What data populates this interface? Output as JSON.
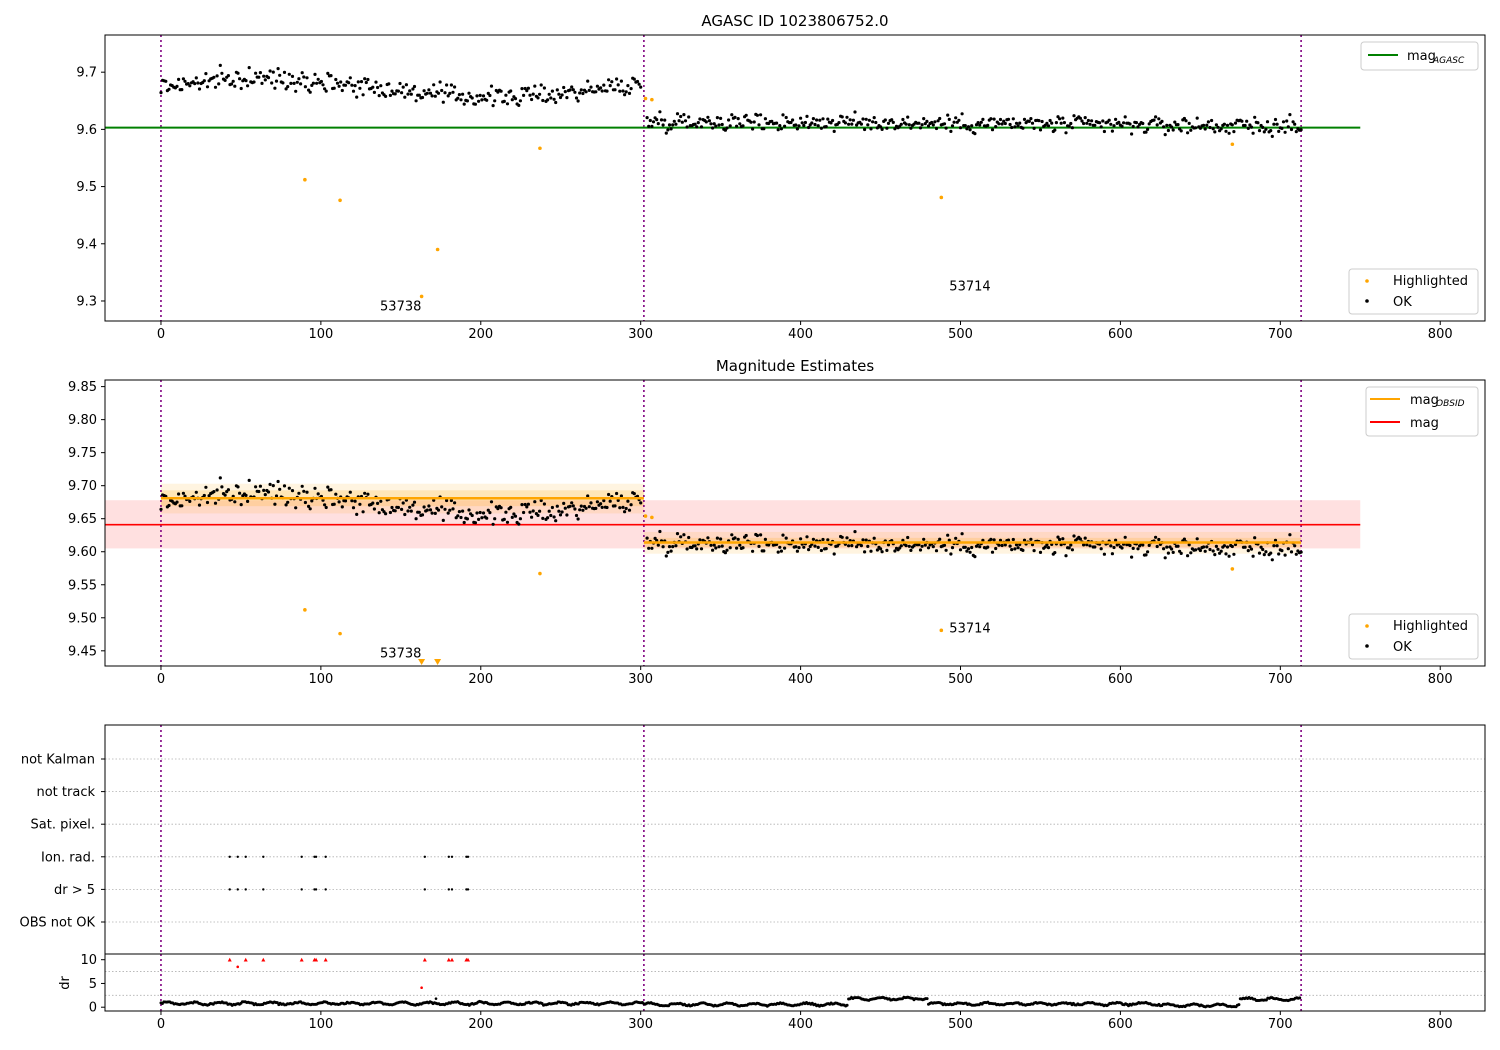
{
  "chart_data": [
    {
      "type": "scatter",
      "title": "AGASC ID 1023806752.0",
      "xlim": [
        -35,
        828
      ],
      "ylim": [
        9.265,
        9.765
      ],
      "xticks": [
        0,
        100,
        200,
        300,
        400,
        500,
        600,
        700,
        800
      ],
      "yticks": [
        9.3,
        9.4,
        9.5,
        9.6,
        9.7
      ],
      "ytick_labels": [
        "9.3",
        "9.4",
        "9.5",
        "9.6",
        "9.7"
      ],
      "vlines": [
        0,
        302,
        713
      ],
      "mag_agasc": {
        "value": 9.603,
        "x": [
          -35,
          750
        ]
      },
      "highlighted": [
        [
          90,
          9.512
        ],
        [
          112,
          9.476
        ],
        [
          163,
          9.308
        ],
        [
          173,
          9.39
        ],
        [
          237,
          9.567
        ],
        [
          303,
          9.654
        ],
        [
          307,
          9.652
        ],
        [
          488,
          9.481
        ],
        [
          670,
          9.574
        ]
      ],
      "ok_segments": [
        {
          "x0": 0,
          "x1": 300,
          "n": 300,
          "start": 9.675,
          "end": 9.67,
          "bump": 0.015,
          "noise": 0.012
        },
        {
          "x0": 304,
          "x1": 713,
          "n": 410,
          "start": 9.615,
          "end": 9.605,
          "bump": 0.0,
          "noise": 0.011
        }
      ],
      "annotations": [
        {
          "text": "53738",
          "x": 137,
          "y": 9.283
        },
        {
          "text": "53714",
          "x": 493,
          "y": 9.318
        }
      ],
      "legends": [
        {
          "placement": "upper-right",
          "entries": [
            {
              "label": "mag",
              "sub": "AGASC",
              "marker": "line",
              "color": "#008000"
            }
          ]
        },
        {
          "placement": "lower-right",
          "entries": [
            {
              "label": "Highlighted",
              "marker": "dot",
              "color": "#ffa500"
            },
            {
              "label": "OK",
              "marker": "dot",
              "color": "#000000"
            }
          ]
        }
      ]
    },
    {
      "type": "scatter",
      "title": "Magnitude Estimates",
      "xlim": [
        -35,
        828
      ],
      "ylim": [
        9.427,
        9.86
      ],
      "xticks": [
        0,
        100,
        200,
        300,
        400,
        500,
        600,
        700,
        800
      ],
      "yticks": [
        9.45,
        9.5,
        9.55,
        9.6,
        9.65,
        9.7,
        9.75,
        9.8,
        9.85
      ],
      "ytick_labels": [
        "9.45",
        "9.50",
        "9.55",
        "9.60",
        "9.65",
        "9.70",
        "9.75",
        "9.80",
        "9.85"
      ],
      "vlines": [
        0,
        302,
        713
      ],
      "mag": {
        "value": 9.641,
        "low": 9.605,
        "high": 9.678,
        "x": [
          -35,
          750
        ]
      },
      "mag_obsid": [
        {
          "x0": 0,
          "x1": 302,
          "value": 9.681,
          "low": 9.669,
          "high": 9.693,
          "low2": 9.658,
          "high2": 9.703
        },
        {
          "x0": 302,
          "x1": 713,
          "value": 9.614,
          "low": 9.607,
          "high": 9.621,
          "low2": 9.597,
          "high2": 9.63
        }
      ],
      "highlighted": [
        [
          90,
          9.512
        ],
        [
          112,
          9.476
        ],
        [
          237,
          9.567
        ],
        [
          303,
          9.654
        ],
        [
          307,
          9.652
        ],
        [
          488,
          9.481
        ],
        [
          670,
          9.574
        ]
      ],
      "below_range": [
        163,
        173
      ],
      "ok_segments": [
        {
          "x0": 0,
          "x1": 300,
          "n": 300,
          "start": 9.675,
          "end": 9.67,
          "bump": 0.015,
          "noise": 0.012
        },
        {
          "x0": 304,
          "x1": 713,
          "n": 410,
          "start": 9.615,
          "end": 9.605,
          "bump": 0.0,
          "noise": 0.011
        }
      ],
      "annotations": [
        {
          "text": "53738",
          "x": 137,
          "y": 9.44
        },
        {
          "text": "53714",
          "x": 493,
          "y": 9.478
        }
      ],
      "legends": [
        {
          "placement": "upper-right",
          "entries": [
            {
              "label": "mag",
              "sub": "OBSID",
              "marker": "line",
              "color": "#ffa500"
            },
            {
              "label": "mag",
              "marker": "line",
              "color": "#ff0000"
            }
          ]
        },
        {
          "placement": "lower-right",
          "entries": [
            {
              "label": "Highlighted",
              "marker": "dot",
              "color": "#ffa500"
            },
            {
              "label": "OK",
              "marker": "dot",
              "color": "#000000"
            }
          ]
        }
      ]
    },
    {
      "type": "scatter",
      "xlim": [
        -35,
        828
      ],
      "xticks": [
        0,
        100,
        200,
        300,
        400,
        500,
        600,
        700,
        800
      ],
      "vlines": [
        0,
        302,
        713
      ],
      "categories": [
        "not Kalman",
        "not track",
        "Sat. pixel.",
        "Ion. rad.",
        "dr > 5",
        "OBS not OK"
      ],
      "flag_points": {
        "Ion. rad.": [
          43,
          48,
          53,
          64,
          88,
          96,
          97,
          103,
          165,
          180,
          182,
          191,
          192
        ],
        "dr > 5": [
          43,
          48,
          53,
          64,
          88,
          96,
          97,
          103,
          165,
          180,
          182,
          191,
          192
        ]
      }
    },
    {
      "type": "scatter",
      "ylabel": "dr",
      "xlim": [
        -35,
        828
      ],
      "ylim": [
        -0.8,
        11.2
      ],
      "yticks": [
        0,
        5,
        10
      ],
      "ytick_labels": [
        "0",
        "5",
        "10"
      ],
      "xticks": [
        0,
        100,
        200,
        300,
        400,
        500,
        600,
        700,
        800
      ],
      "xtick_labels": [
        "0",
        "100",
        "200",
        "300",
        "400",
        "500",
        "600",
        "700",
        "800"
      ],
      "vlines": [
        0,
        302,
        713
      ],
      "clipped_at": 10,
      "clipped_points": [
        43,
        53,
        64,
        88,
        96,
        97,
        103,
        165,
        180,
        182,
        191,
        192
      ],
      "extra_points": [
        [
          48,
          8.5
        ],
        [
          163,
          4.1
        ],
        [
          172,
          1.8
        ]
      ],
      "dr_levels": [
        {
          "x0": 0,
          "x1": 302,
          "level": 0.8
        },
        {
          "x0": 302,
          "x1": 430,
          "level": 0.6
        },
        {
          "x0": 430,
          "x1": 480,
          "level": 1.8
        },
        {
          "x0": 480,
          "x1": 625,
          "level": 0.7
        },
        {
          "x0": 625,
          "x1": 675,
          "level": 0.4
        },
        {
          "x0": 675,
          "x1": 713,
          "level": 1.7
        }
      ]
    }
  ]
}
